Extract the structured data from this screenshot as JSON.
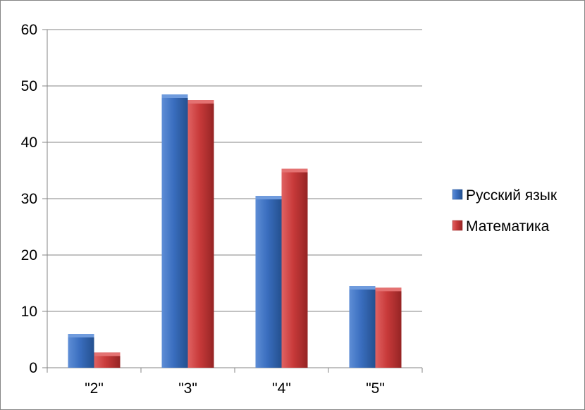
{
  "chart_data": {
    "type": "bar",
    "categories": [
      "\"2\"",
      "\"3\"",
      "\"4\"",
      "\"5\""
    ],
    "series": [
      {
        "name": "Русский язык",
        "values": [
          6,
          48.5,
          30.5,
          14.5
        ],
        "color": "#3A6EBF"
      },
      {
        "name": "Математика",
        "values": [
          2.7,
          47.5,
          35.3,
          14.2
        ],
        "color": "#C83A3A"
      }
    ],
    "y_ticks": [
      "0",
      "10",
      "20",
      "30",
      "40",
      "50",
      "60"
    ],
    "ylim": [
      0,
      60
    ],
    "grid": true,
    "legend_position": "right",
    "title": "",
    "xlabel": "",
    "ylabel": ""
  }
}
